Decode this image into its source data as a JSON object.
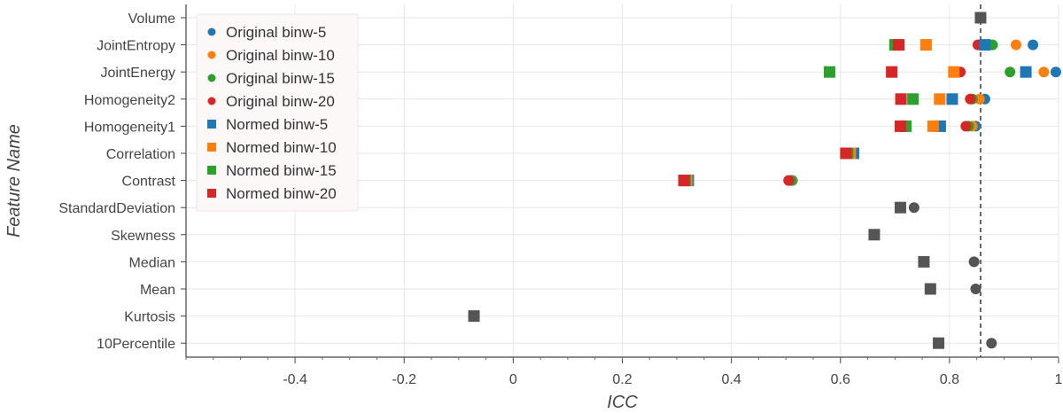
{
  "chart_data": {
    "type": "scatter",
    "xlabel": "ICC",
    "ylabel": "Feature Name",
    "xlim": [
      -0.6,
      1.0
    ],
    "x_ticks": [
      -0.4,
      -0.2,
      0,
      0.2,
      0.4,
      0.6,
      0.8,
      1
    ],
    "x_tick_labels": [
      "-0.4",
      "-0.2",
      "0",
      "0.2",
      "0.4",
      "0.6",
      "0.8",
      "1"
    ],
    "categories": [
      "Volume",
      "JointEntropy",
      "JointEnergy",
      "Homogeneity2",
      "Homogeneity1",
      "Correlation",
      "Contrast",
      "StandardDeviation",
      "Skewness",
      "Median",
      "Mean",
      "Kurtosis",
      "10Percentile"
    ],
    "threshold_line": 0.857,
    "grid": true,
    "legend_position": "top-left",
    "series": [
      {
        "name": "Original binw-5",
        "marker": "circle",
        "color": "#1f77b4",
        "points": [
          [
            "JointEntropy",
            0.953
          ],
          [
            "JointEnergy",
            0.995
          ],
          [
            "Homogeneity2",
            0.865
          ],
          [
            "Homogeneity1",
            0.848
          ],
          [
            "Correlation",
            0.625
          ],
          [
            "Contrast",
            0.512
          ]
        ]
      },
      {
        "name": "Original binw-10",
        "marker": "circle",
        "color": "#ff7f0e",
        "points": [
          [
            "JointEntropy",
            0.922
          ],
          [
            "JointEnergy",
            0.973
          ],
          [
            "Homogeneity2",
            0.855
          ],
          [
            "Homogeneity1",
            0.842
          ],
          [
            "Correlation",
            0.622
          ],
          [
            "Contrast",
            0.511
          ]
        ]
      },
      {
        "name": "Original binw-15",
        "marker": "circle",
        "color": "#2ca02c",
        "points": [
          [
            "JointEntropy",
            0.879
          ],
          [
            "JointEnergy",
            0.911
          ],
          [
            "Homogeneity2",
            0.842
          ],
          [
            "Homogeneity1",
            0.835
          ],
          [
            "Correlation",
            0.615
          ],
          [
            "Contrast",
            0.51
          ]
        ]
      },
      {
        "name": "Original binw-20",
        "marker": "circle",
        "color": "#d62728",
        "points": [
          [
            "JointEntropy",
            0.852
          ],
          [
            "JointEnergy",
            0.82
          ],
          [
            "Homogeneity2",
            0.838
          ],
          [
            "Homogeneity1",
            0.83
          ],
          [
            "Correlation",
            0.612
          ],
          [
            "Contrast",
            0.505
          ]
        ]
      },
      {
        "name": "Normed binw-5",
        "marker": "square",
        "color": "#1f77b4",
        "points": [
          [
            "JointEntropy",
            0.865
          ],
          [
            "JointEnergy",
            0.94
          ],
          [
            "Homogeneity2",
            0.805
          ],
          [
            "Homogeneity1",
            0.783
          ],
          [
            "Correlation",
            0.624
          ],
          [
            "Contrast",
            0.321
          ]
        ]
      },
      {
        "name": "Normed binw-10",
        "marker": "square",
        "color": "#ff7f0e",
        "points": [
          [
            "JointEntropy",
            0.757
          ],
          [
            "JointEnergy",
            0.808
          ],
          [
            "Homogeneity2",
            0.782
          ],
          [
            "Homogeneity1",
            0.77
          ],
          [
            "Correlation",
            0.618
          ],
          [
            "Contrast",
            0.318
          ]
        ]
      },
      {
        "name": "Normed binw-15",
        "marker": "square",
        "color": "#2ca02c",
        "points": [
          [
            "JointEntropy",
            0.7
          ],
          [
            "JointEnergy",
            0.58
          ],
          [
            "Homogeneity2",
            0.733
          ],
          [
            "Homogeneity1",
            0.72
          ],
          [
            "Correlation",
            0.613
          ],
          [
            "Contrast",
            0.315
          ]
        ]
      },
      {
        "name": "Normed binw-20",
        "marker": "square",
        "color": "#d62728",
        "points": [
          [
            "JointEntropy",
            0.707
          ],
          [
            "JointEnergy",
            0.694
          ],
          [
            "Homogeneity2",
            0.711
          ],
          [
            "Homogeneity1",
            0.71
          ],
          [
            "Correlation",
            0.61
          ],
          [
            "Contrast",
            0.313
          ]
        ]
      },
      {
        "marker": "circle",
        "color": "#555555",
        "points": [
          [
            "StandardDeviation",
            0.735
          ],
          [
            "Median",
            0.845
          ],
          [
            "Mean",
            0.848
          ],
          [
            "10Percentile",
            0.877
          ]
        ]
      },
      {
        "marker": "square",
        "color": "#555555",
        "points": [
          [
            "Volume",
            0.857
          ],
          [
            "StandardDeviation",
            0.71
          ],
          [
            "Skewness",
            0.662
          ],
          [
            "Median",
            0.753
          ],
          [
            "Mean",
            0.765
          ],
          [
            "Kurtosis",
            -0.072
          ],
          [
            "10Percentile",
            0.78
          ]
        ]
      }
    ]
  }
}
